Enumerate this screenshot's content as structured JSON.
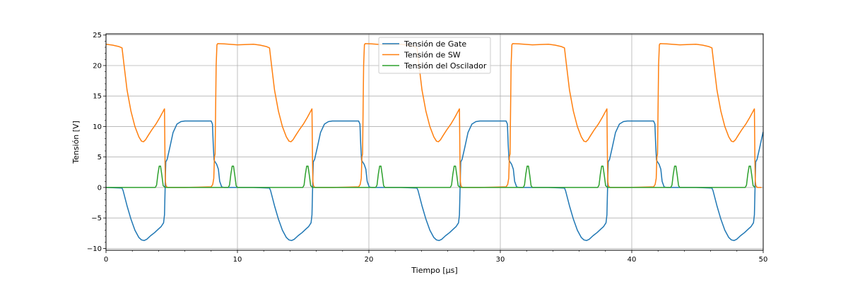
{
  "chart_data": {
    "type": "line",
    "title": "",
    "xlabel": "Tiempo [$\\mu s$]",
    "xlabel_display": "Tiempo [μs]",
    "ylabel": "Tensión [V]",
    "xlim": [
      0,
      50
    ],
    "ylim": [
      -10.3,
      25.2
    ],
    "xticks": [
      0,
      10,
      20,
      30,
      40,
      50
    ],
    "yticks": [
      -10,
      -5,
      0,
      5,
      10,
      15,
      20,
      25
    ],
    "xtick_labels": [
      "0",
      "10",
      "20",
      "30",
      "40",
      "50"
    ],
    "ytick_labels": [
      "−10",
      "−5",
      "0",
      "5",
      "10",
      "15",
      "20",
      "25"
    ],
    "grid": true,
    "minor_ticks": true,
    "legend_position": "upper-center",
    "period_us": 11.22,
    "series": [
      {
        "name": "Tensión de Gate",
        "color": "#1f77b4",
        "x": [
          0,
          1.22,
          1.3,
          1.6,
          1.9,
          2.2,
          2.5,
          2.7,
          2.9,
          3.1,
          3.4,
          3.7,
          4.0,
          4.2,
          4.38,
          4.45,
          4.5,
          4.55,
          4.65,
          4.85,
          5.1,
          5.4,
          5.7,
          6.0,
          7.0,
          8.0,
          8.1,
          8.16,
          8.22,
          8.3,
          8.42,
          8.55,
          8.65,
          8.8,
          9.0,
          9.5,
          11.22
        ],
        "y": [
          0,
          -0.1,
          -0.5,
          -3.0,
          -5.2,
          -7.0,
          -8.2,
          -8.6,
          -8.7,
          -8.5,
          -7.9,
          -7.4,
          -6.8,
          -6.4,
          -5.8,
          -4.5,
          0,
          4.2,
          4.6,
          6.5,
          9.0,
          10.4,
          10.8,
          10.9,
          10.9,
          10.9,
          10.4,
          7.0,
          4.5,
          4.2,
          3.8,
          3.0,
          1.0,
          0.1,
          0,
          0,
          0
        ]
      },
      {
        "name": "Tensión de SW",
        "color": "#ff7f0e",
        "x": [
          0,
          0.5,
          1.0,
          1.22,
          1.35,
          1.6,
          1.9,
          2.2,
          2.5,
          2.7,
          2.85,
          3.0,
          3.2,
          3.5,
          3.8,
          4.1,
          4.3,
          4.45,
          4.49,
          4.52,
          4.56,
          4.62,
          4.7,
          5.0,
          6.0,
          7.0,
          8.0,
          8.12,
          8.2,
          8.25,
          8.3,
          8.38,
          8.44,
          8.5,
          9.0,
          10.0,
          11.22
        ],
        "y": [
          23.5,
          23.35,
          23.1,
          22.9,
          20.5,
          16.0,
          12.5,
          10.0,
          8.3,
          7.6,
          7.5,
          7.8,
          8.5,
          9.5,
          10.4,
          11.5,
          12.3,
          12.9,
          4.5,
          1.0,
          0.3,
          0.1,
          0,
          0,
          0,
          0.05,
          0.1,
          0.5,
          1.5,
          5.0,
          5.5,
          20.0,
          23.4,
          23.6,
          23.55,
          23.4,
          23.5
        ]
      },
      {
        "name": "Tensión del Oscilador",
        "color": "#2ca02c",
        "x": [
          0,
          3.75,
          3.85,
          3.95,
          4.05,
          4.15,
          4.25,
          4.35,
          4.5,
          9.3,
          9.4,
          9.5,
          9.6,
          9.7,
          9.8,
          9.9,
          10.0,
          11.22
        ],
        "y": [
          0,
          0,
          0.4,
          2.2,
          3.5,
          3.5,
          2.0,
          0.3,
          0,
          0,
          0.4,
          2.2,
          3.5,
          3.5,
          2.0,
          0.3,
          0,
          0
        ]
      }
    ]
  }
}
